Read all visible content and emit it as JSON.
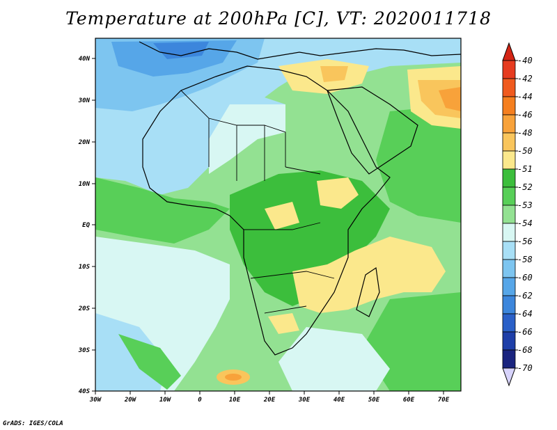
{
  "title": "Temperature at 200hPa [C], VT: 2020011718",
  "credit": "GrADS: IGES/COLA",
  "map": {
    "lon_labels": [
      "30W",
      "20W",
      "10W",
      "0",
      "10E",
      "20E",
      "30E",
      "40E",
      "50E",
      "60E",
      "70E"
    ],
    "lat_labels": [
      "40N",
      "30N",
      "20N",
      "10N",
      "EQ",
      "10S",
      "20S",
      "30S",
      "40S"
    ]
  },
  "colorbar": {
    "labels": [
      "-40",
      "-42",
      "-44",
      "-46",
      "-48",
      "-50",
      "-51",
      "-52",
      "-53",
      "-54",
      "-56",
      "-58",
      "-60",
      "-62",
      "-64",
      "-66",
      "-68",
      "-70"
    ],
    "colors": [
      "#e63b1f",
      "#f05a1e",
      "#f57f1f",
      "#f8a23a",
      "#f9c55c",
      "#fbe88c",
      "#3cbe3c",
      "#58cf58",
      "#93e192",
      "#d8f7f3",
      "#a8dff6",
      "#7dc5f0",
      "#56a6e8",
      "#3c86dc",
      "#2a60c8",
      "#1e3fa8",
      "#1a247f"
    ],
    "top_arrow_color": "#d42515",
    "bottom_arrow_color": "#d7d3fb"
  },
  "palette": {
    "ocean_fill": "#d8f7f3",
    "frame": "#000000"
  }
}
